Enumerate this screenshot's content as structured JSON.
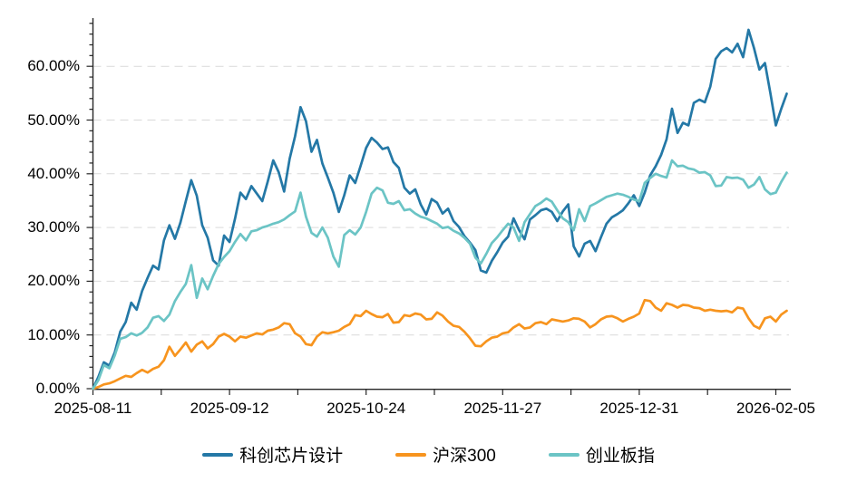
{
  "colors": {
    "background": "#ffffff",
    "axis": "#262626",
    "grid": "#d9d9d9",
    "text": "#000000",
    "series_blue": "#2478a6",
    "series_orange": "#f7941e",
    "series_teal": "#6bc4c5"
  },
  "chart_data": {
    "type": "line",
    "title": "",
    "xlabel": "",
    "ylabel": "",
    "grid": "horizontal-dashed",
    "legend_position": "bottom-center",
    "ylim": [
      0,
      69
    ],
    "y_ticks": [
      "0.00%",
      "10.00%",
      "20.00%",
      "30.00%",
      "40.00%",
      "50.00%",
      "60.00%"
    ],
    "y_tick_values": [
      0,
      10,
      20,
      30,
      40,
      50,
      60
    ],
    "y_minor_tick_step": 2,
    "x_tick_labels": [
      "2025-08-11",
      "2025-09-12",
      "2025-10-24",
      "2025-11-27",
      "2025-12-31",
      "2026-02-05"
    ],
    "x_tick_day_indexes": [
      0,
      25,
      50,
      75,
      100,
      125
    ],
    "n_points": 128,
    "unit": "percent_return",
    "series": [
      {
        "name": "科创芯片设计",
        "color": "#2478a6",
        "values": [
          0,
          2.2,
          4.9,
          4.3,
          6.8,
          10.6,
          12.4,
          16.0,
          14.7,
          18.2,
          20.6,
          22.9,
          22.2,
          27.6,
          30.4,
          27.9,
          30.9,
          34.9,
          38.8,
          35.9,
          30.4,
          28.1,
          23.9,
          22.9,
          28.5,
          27.3,
          31.6,
          36.5,
          35.3,
          37.7,
          36.3,
          34.9,
          38.6,
          42.5,
          40.3,
          36.7,
          42.8,
          47.0,
          52.4,
          49.8,
          44.1,
          46.3,
          41.9,
          39.3,
          36.5,
          32.9,
          36.0,
          39.7,
          38.3,
          41.5,
          44.8,
          46.7,
          45.8,
          44.6,
          44.9,
          42.2,
          41.1,
          37.4,
          36.3,
          37.1,
          34.3,
          32.4,
          35.3,
          34.6,
          32.6,
          33.5,
          31.2,
          30.1,
          28.4,
          27.2,
          25.8,
          22.0,
          21.6,
          23.8,
          25.4,
          27.2,
          28.3,
          31.7,
          29.5,
          27.8,
          31.5,
          32.3,
          33.2,
          33.5,
          32.9,
          31.2,
          33.0,
          34.3,
          26.5,
          24.6,
          27.0,
          27.5,
          25.6,
          28.2,
          30.7,
          31.9,
          32.5,
          33.2,
          34.5,
          36.0,
          34.0,
          36.5,
          39.7,
          41.4,
          43.5,
          46.4,
          52.1,
          47.6,
          49.5,
          49.0,
          53.2,
          53.8,
          53.3,
          56.2,
          61.4,
          62.8,
          63.4,
          62.6,
          64.2,
          61.7,
          66.8,
          63.4,
          59.4,
          60.6,
          55.0,
          49.0,
          52.1,
          54.9
        ]
      },
      {
        "name": "沪深300",
        "color": "#f7941e",
        "values": [
          0,
          0.3,
          0.8,
          1.0,
          1.4,
          1.9,
          2.4,
          2.2,
          2.9,
          3.5,
          3.0,
          3.7,
          4.1,
          5.3,
          7.8,
          6.1,
          7.3,
          8.6,
          6.9,
          8.2,
          8.8,
          7.5,
          8.3,
          9.7,
          10.2,
          9.7,
          8.8,
          9.7,
          9.5,
          9.9,
          10.3,
          10.1,
          10.8,
          11.0,
          11.4,
          12.2,
          12.0,
          10.3,
          9.7,
          8.3,
          8.1,
          9.7,
          10.5,
          10.3,
          10.5,
          10.8,
          11.5,
          12.0,
          13.7,
          13.5,
          14.5,
          13.9,
          13.4,
          13.3,
          13.9,
          12.3,
          12.4,
          13.7,
          13.5,
          14.0,
          13.8,
          12.9,
          13.0,
          14.2,
          13.6,
          12.5,
          11.7,
          11.5,
          10.6,
          9.4,
          8.0,
          7.9,
          8.8,
          9.5,
          9.7,
          10.3,
          10.5,
          11.4,
          12.0,
          11.2,
          11.4,
          12.2,
          12.4,
          12.0,
          12.9,
          12.7,
          12.5,
          12.7,
          13.1,
          13.0,
          12.5,
          11.4,
          12.0,
          12.9,
          13.4,
          13.5,
          13.1,
          12.5,
          13.0,
          13.4,
          14.0,
          16.5,
          16.3,
          15.1,
          14.5,
          15.9,
          15.6,
          15.1,
          15.6,
          15.5,
          15.1,
          15.0,
          14.5,
          14.7,
          14.5,
          14.4,
          14.5,
          14.2,
          15.1,
          14.9,
          13.1,
          11.7,
          11.2,
          13.1,
          13.4,
          12.5,
          13.8,
          14.5
        ]
      },
      {
        "name": "创业板指",
        "color": "#6bc4c5",
        "values": [
          0,
          1.6,
          4.4,
          3.8,
          6.2,
          9.3,
          9.6,
          10.3,
          9.9,
          10.4,
          11.4,
          13.2,
          13.5,
          12.6,
          13.8,
          16.3,
          18.0,
          19.5,
          23.0,
          16.9,
          20.5,
          18.5,
          21.0,
          23.2,
          24.5,
          25.6,
          27.3,
          28.8,
          27.6,
          29.3,
          29.5,
          30.0,
          30.3,
          30.7,
          31.0,
          31.5,
          32.3,
          33.0,
          36.5,
          32.0,
          29.0,
          28.3,
          30.0,
          28.1,
          24.6,
          22.7,
          28.6,
          29.5,
          28.7,
          30.0,
          32.9,
          36.3,
          37.4,
          36.9,
          34.6,
          34.4,
          34.9,
          33.2,
          33.4,
          32.6,
          32.0,
          31.7,
          31.2,
          30.7,
          29.9,
          30.1,
          29.4,
          28.9,
          28.1,
          27.0,
          24.4,
          23.3,
          25.1,
          27.1,
          28.2,
          29.5,
          30.7,
          30.0,
          27.5,
          31.0,
          32.5,
          34.0,
          34.6,
          35.4,
          34.8,
          33.2,
          31.7,
          31.0,
          29.5,
          33.4,
          31.2,
          34.0,
          34.5,
          35.1,
          35.7,
          36.0,
          36.3,
          36.1,
          35.7,
          35.2,
          34.9,
          38.3,
          39.2,
          40.0,
          39.6,
          39.3,
          42.5,
          41.4,
          41.5,
          41.0,
          40.8,
          40.2,
          40.3,
          39.7,
          37.7,
          37.8,
          39.4,
          39.2,
          39.3,
          38.9,
          37.4,
          38.0,
          39.4,
          37.1,
          36.2,
          36.5,
          38.5,
          40.2
        ]
      }
    ]
  }
}
